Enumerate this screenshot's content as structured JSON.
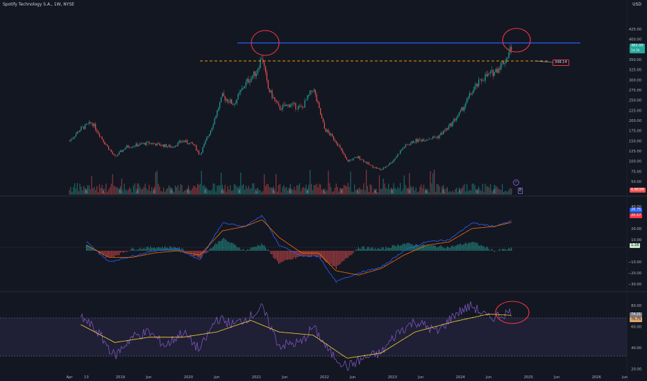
{
  "header": {
    "title": "Spotify Technology S.A., 1W, NYSE",
    "currency": "USD"
  },
  "price_panel": {
    "y_ticks": [
      "425.00",
      "400.00",
      "375.00",
      "350.00",
      "325.00",
      "300.00",
      "275.00",
      "250.00",
      "225.00",
      "200.00",
      "175.00",
      "150.00",
      "125.00",
      "100.00",
      "75.00",
      "50.00"
    ],
    "last_price": "382.00",
    "last_sub": "1d 2h",
    "level_label": "348.14",
    "volume_label": "6.863M",
    "event_marker": "E",
    "plus_button": "+"
  },
  "macd_panel": {
    "y_ticks": [
      "40.00",
      "20.00",
      "10.00",
      "−10.00",
      "−20.00",
      "−30.00"
    ],
    "macd_value": "26.75",
    "signal_value": "25.57",
    "hist_value": "1.18"
  },
  "rsi_panel": {
    "y_ticks": [
      "80.00",
      "60.00",
      "40.00",
      "20.00"
    ],
    "rsi_value": "74.21",
    "rsi_ma_value": "70.75"
  },
  "x_axis": {
    "ticks": [
      "Apr",
      "13",
      "2019",
      "Jun",
      "2020",
      "Jun",
      "2021",
      "Jun",
      "2022",
      "Jun",
      "2023",
      "Jun",
      "2024",
      "Jun",
      "2025",
      "Jun",
      "2026",
      "Jun"
    ]
  },
  "colors": {
    "background": "#131722",
    "up": "#26a69a",
    "down": "#ef5350",
    "resistance": "#2962ff",
    "support_dashed": "#ff9800",
    "annotation_circle": "#f23645",
    "macd_line": "#2962ff",
    "signal_line": "#ff6d00",
    "rsi_line": "#7e57c2",
    "rsi_ma": "#fdd835"
  },
  "chart_data": [
    {
      "type": "line",
      "title": "",
      "ylabel": "",
      "ylim": [
        50,
        425
      ],
      "x_range": [
        "2018-04",
        "2026-06"
      ],
      "log_scale": false,
      "grid": false,
      "series": [
        {
          "values": [
            {
              "x": "2018-04",
              "y": 150
            },
            {
              "x": "2018-06",
              "y": 180
            },
            {
              "x": "2018-08",
              "y": 195
            },
            {
              "x": "2018-10",
              "y": 150
            },
            {
              "x": "2018-12",
              "y": 110
            },
            {
              "x": "2019-02",
              "y": 135
            },
            {
              "x": "2019-04",
              "y": 140
            },
            {
              "x": "2019-06",
              "y": 145
            },
            {
              "x": "2019-08",
              "y": 140
            },
            {
              "x": "2019-10",
              "y": 135
            },
            {
              "x": "2019-12",
              "y": 150
            },
            {
              "x": "2020-02",
              "y": 140
            },
            {
              "x": "2020-03",
              "y": 115
            },
            {
              "x": "2020-05",
              "y": 180
            },
            {
              "x": "2020-07",
              "y": 260
            },
            {
              "x": "2020-09",
              "y": 240
            },
            {
              "x": "2020-11",
              "y": 290
            },
            {
              "x": "2021-01",
              "y": 320
            },
            {
              "x": "2021-02",
              "y": 360
            },
            {
              "x": "2021-03",
              "y": 280
            },
            {
              "x": "2021-05",
              "y": 230
            },
            {
              "x": "2021-07",
              "y": 240
            },
            {
              "x": "2021-09",
              "y": 230
            },
            {
              "x": "2021-11",
              "y": 280
            },
            {
              "x": "2022-01",
              "y": 180
            },
            {
              "x": "2022-03",
              "y": 150
            },
            {
              "x": "2022-05",
              "y": 100
            },
            {
              "x": "2022-07",
              "y": 110
            },
            {
              "x": "2022-09",
              "y": 90
            },
            {
              "x": "2022-11",
              "y": 78
            },
            {
              "x": "2023-01",
              "y": 100
            },
            {
              "x": "2023-03",
              "y": 135
            },
            {
              "x": "2023-05",
              "y": 150
            },
            {
              "x": "2023-07",
              "y": 155
            },
            {
              "x": "2023-09",
              "y": 160
            },
            {
              "x": "2023-11",
              "y": 185
            },
            {
              "x": "2024-01",
              "y": 220
            },
            {
              "x": "2024-03",
              "y": 270
            },
            {
              "x": "2024-05",
              "y": 305
            },
            {
              "x": "2024-07",
              "y": 320
            },
            {
              "x": "2024-09",
              "y": 350
            },
            {
              "x": "2024-10",
              "y": 382
            }
          ]
        }
      ],
      "annotations": [
        {
          "label": "348.14",
          "type": "horizontal_level",
          "y": 348.14
        },
        {
          "type": "horizontal_level",
          "y": 392
        }
      ]
    },
    {
      "type": "line",
      "ylim": [
        -35,
        45
      ],
      "series": [
        {
          "values": [
            {
              "x": "2018-07",
              "y": 8
            },
            {
              "x": "2018-11",
              "y": -10
            },
            {
              "x": "2019-03",
              "y": -5
            },
            {
              "x": "2019-07",
              "y": 0
            },
            {
              "x": "2019-11",
              "y": 2
            },
            {
              "x": "2020-03",
              "y": -8
            },
            {
              "x": "2020-07",
              "y": 25
            },
            {
              "x": "2020-11",
              "y": 22
            },
            {
              "x": "2021-02",
              "y": 32
            },
            {
              "x": "2021-05",
              "y": 5
            },
            {
              "x": "2021-09",
              "y": -5
            },
            {
              "x": "2021-12",
              "y": -5
            },
            {
              "x": "2022-03",
              "y": -28
            },
            {
              "x": "2022-07",
              "y": -20
            },
            {
              "x": "2022-11",
              "y": -15
            },
            {
              "x": "2023-03",
              "y": 0
            },
            {
              "x": "2023-07",
              "y": 8
            },
            {
              "x": "2023-11",
              "y": 10
            },
            {
              "x": "2024-03",
              "y": 25
            },
            {
              "x": "2024-07",
              "y": 22
            },
            {
              "x": "2024-10",
              "y": 26.75
            }
          ]
        },
        {
          "values": [
            {
              "x": "2018-07",
              "y": 5
            },
            {
              "x": "2018-11",
              "y": -6
            },
            {
              "x": "2019-03",
              "y": -6
            },
            {
              "x": "2019-07",
              "y": -2
            },
            {
              "x": "2019-11",
              "y": 0
            },
            {
              "x": "2020-03",
              "y": -4
            },
            {
              "x": "2020-07",
              "y": 18
            },
            {
              "x": "2020-11",
              "y": 22
            },
            {
              "x": "2021-02",
              "y": 28
            },
            {
              "x": "2021-05",
              "y": 12
            },
            {
              "x": "2021-09",
              "y": -2
            },
            {
              "x": "2021-12",
              "y": -2
            },
            {
              "x": "2022-03",
              "y": -18
            },
            {
              "x": "2022-07",
              "y": -22
            },
            {
              "x": "2022-11",
              "y": -16
            },
            {
              "x": "2023-03",
              "y": -4
            },
            {
              "x": "2023-07",
              "y": 5
            },
            {
              "x": "2023-11",
              "y": 8
            },
            {
              "x": "2024-03",
              "y": 20
            },
            {
              "x": "2024-07",
              "y": 22
            },
            {
              "x": "2024-10",
              "y": 25.57
            }
          ]
        }
      ]
    },
    {
      "type": "line",
      "ylim": [
        15,
        90
      ],
      "series": [
        {
          "values": [
            {
              "x": "2018-06",
              "y": 70
            },
            {
              "x": "2018-09",
              "y": 55
            },
            {
              "x": "2018-12",
              "y": 32
            },
            {
              "x": "2019-03",
              "y": 50
            },
            {
              "x": "2019-06",
              "y": 55
            },
            {
              "x": "2019-09",
              "y": 42
            },
            {
              "x": "2019-12",
              "y": 55
            },
            {
              "x": "2020-03",
              "y": 38
            },
            {
              "x": "2020-06",
              "y": 68
            },
            {
              "x": "2020-09",
              "y": 62
            },
            {
              "x": "2020-12",
              "y": 70
            },
            {
              "x": "2021-02",
              "y": 78
            },
            {
              "x": "2021-05",
              "y": 42
            },
            {
              "x": "2021-09",
              "y": 45
            },
            {
              "x": "2021-11",
              "y": 60
            },
            {
              "x": "2022-02",
              "y": 35
            },
            {
              "x": "2022-05",
              "y": 22
            },
            {
              "x": "2022-08",
              "y": 30
            },
            {
              "x": "2022-11",
              "y": 35
            },
            {
              "x": "2023-02",
              "y": 55
            },
            {
              "x": "2023-05",
              "y": 65
            },
            {
              "x": "2023-09",
              "y": 55
            },
            {
              "x": "2023-12",
              "y": 72
            },
            {
              "x": "2024-03",
              "y": 80
            },
            {
              "x": "2024-06",
              "y": 68
            },
            {
              "x": "2024-10",
              "y": 74.21
            }
          ]
        },
        {
          "values": [
            {
              "x": "2018-06",
              "y": 62
            },
            {
              "x": "2018-12",
              "y": 45
            },
            {
              "x": "2019-06",
              "y": 50
            },
            {
              "x": "2019-12",
              "y": 50
            },
            {
              "x": "2020-06",
              "y": 55
            },
            {
              "x": "2020-12",
              "y": 66
            },
            {
              "x": "2021-05",
              "y": 55
            },
            {
              "x": "2021-11",
              "y": 52
            },
            {
              "x": "2022-05",
              "y": 30
            },
            {
              "x": "2022-11",
              "y": 35
            },
            {
              "x": "2023-05",
              "y": 55
            },
            {
              "x": "2023-12",
              "y": 65
            },
            {
              "x": "2024-06",
              "y": 72
            },
            {
              "x": "2024-10",
              "y": 70.75
            }
          ]
        }
      ]
    }
  ]
}
